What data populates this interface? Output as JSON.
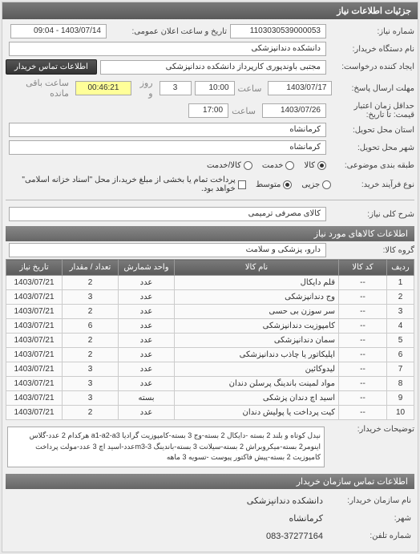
{
  "panel_title": "جزئیات اطلاعات نیاز",
  "labels": {
    "request_no": "شماره نیاز:",
    "announce_dt": "تاریخ و ساعت اعلان عمومی:",
    "buyer_org": "نام دستگاه خریدار:",
    "creator": "ایجاد کننده درخواست:",
    "reply_deadline": "مهلت ارسال پاسخ:",
    "price_validity": "حداقل زمان اعتبار قیمت: تا تاریخ:",
    "exec_province": "استان محل تحویل:",
    "exec_city": "شهر محل تحویل:",
    "classification": "طبقه بندی موضوعی:",
    "process_type": "نوع فرآیند خرید:",
    "hour": "ساعت",
    "day_and": "روز و",
    "remaining": "ساعت باقی مانده",
    "general_subject": "شرح کلی نیاز:",
    "items_info": "اطلاعات کالاهای مورد نیاز",
    "item_group": "گروه کالا:",
    "buyer_notes": "توضیحات خریدار:",
    "contact_header": "اطلاعات تماس سازمان خریدار",
    "org_name": "نام سازمان خریدار:",
    "city": "شهر:",
    "phone": "شماره تلفن:",
    "contact_btn": "اطلاعات تماس خریدار"
  },
  "values": {
    "request_no": "1103030539000053",
    "announce_dt": "1403/07/14 - 09:04",
    "buyer_org": "دانشکده دندانپزشکی",
    "creator": "مجتبی  باوندپوری کارپرداز دانشکده دندانپزشکی",
    "reply_date": "1403/07/17",
    "reply_hour": "10:00",
    "days_left": "3",
    "time_left": "00:46:21",
    "validity_date": "1403/07/26",
    "validity_hour": "17:00",
    "province": "کرمانشاه",
    "city": "کرمانشاه",
    "payment_note": "پرداخت تمام یا بخشی از مبلغ خرید،از محل \"اسناد خزانه اسلامی\" خواهد بود.",
    "general_subject": "کالای مصرفی ترمیمی",
    "item_group": "دارو، پزشکی و سلامت",
    "buyer_notes": "نیدل کوتاه و بلند 2 بسته -دایکال 2 بسته-وج 3 بسته-کامپوزیت گرادیا a1-a2-a3 هرکدام 2 عدد-گلاس اینومر2 بسته-میکروبراش 2 بسته-سیلانت 3 بسته-باندینگ m3-3عدد-اسید اچ 3 عدد-مولت پرداخت کامپوزیت 2 بسته-پیش فاکتور پیوست -تسویه 3 ماهه",
    "org_name": "دانشکده دندانپزشکی",
    "org_city": "کرمانشاه",
    "org_phone": "083-37277164"
  },
  "radios": {
    "class": {
      "goods": "کالا",
      "service": "خدمت",
      "both": "کالا/خدمت"
    },
    "process": {
      "small": "جزیی",
      "medium": "متوسط"
    }
  },
  "table": {
    "headers": {
      "row": "ردیف",
      "code": "کد کالا",
      "name": "نام کالا",
      "unit": "واحد شمارش",
      "qty": "تعداد / مقدار",
      "date": "تاریخ نیاز"
    },
    "rows": [
      {
        "n": "1",
        "code": "--",
        "name": "قلم دایکال",
        "unit": "عدد",
        "qty": "2",
        "date": "1403/07/21"
      },
      {
        "n": "2",
        "code": "--",
        "name": "وج دندانپزشکی",
        "unit": "عدد",
        "qty": "3",
        "date": "1403/07/21"
      },
      {
        "n": "3",
        "code": "--",
        "name": "سر سوزن بی حسی",
        "unit": "عدد",
        "qty": "2",
        "date": "1403/07/21"
      },
      {
        "n": "4",
        "code": "--",
        "name": "کامپوزیت دندانپزشکی",
        "unit": "عدد",
        "qty": "6",
        "date": "1403/07/21"
      },
      {
        "n": "5",
        "code": "--",
        "name": "سمان دندانپزشکی",
        "unit": "عدد",
        "qty": "2",
        "date": "1403/07/21"
      },
      {
        "n": "6",
        "code": "--",
        "name": "اپلیکاتور یا چاذب دندانپزشکی",
        "unit": "عدد",
        "qty": "2",
        "date": "1403/07/21"
      },
      {
        "n": "7",
        "code": "--",
        "name": "لیدوکائین",
        "unit": "عدد",
        "qty": "3",
        "date": "1403/07/21"
      },
      {
        "n": "8",
        "code": "--",
        "name": "مواد لمینت باندینگ پرسلن دندان",
        "unit": "عدد",
        "qty": "3",
        "date": "1403/07/21"
      },
      {
        "n": "9",
        "code": "--",
        "name": "اسید اچ دندان پزشکی",
        "unit": "بسته",
        "qty": "3",
        "date": "1403/07/21"
      },
      {
        "n": "10",
        "code": "--",
        "name": "کیت پرداخت یا پولیش دندان",
        "unit": "عدد",
        "qty": "2",
        "date": "1403/07/21"
      }
    ]
  }
}
